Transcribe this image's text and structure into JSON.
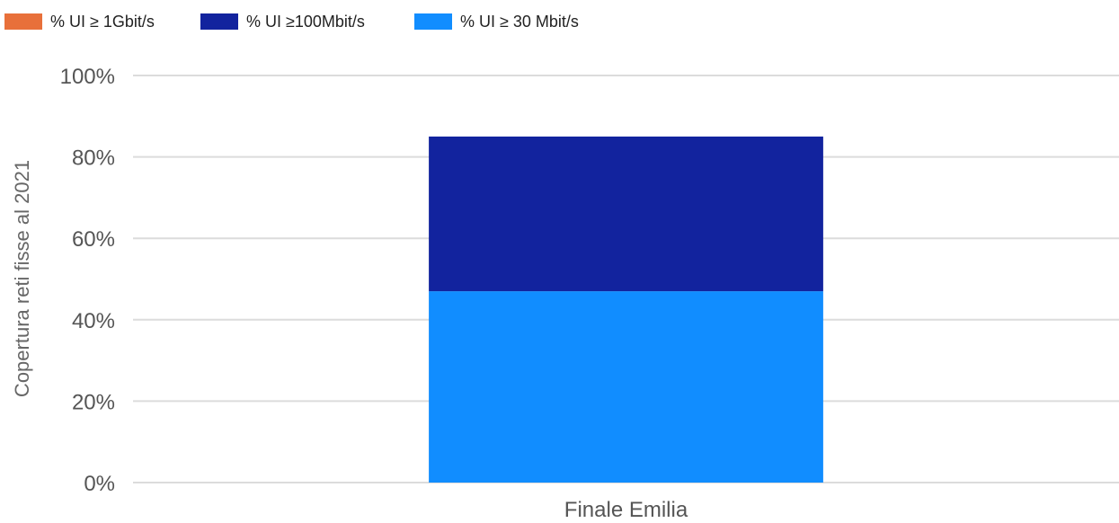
{
  "chart_data": {
    "type": "bar",
    "stacked": true,
    "categories": [
      "Finale Emilia"
    ],
    "series": [
      {
        "name": "% UI ≥ 1Gbit/s",
        "color": "#E8703A",
        "values": [
          0
        ]
      },
      {
        "name": "% UI ≥100Mbit/s",
        "color": "#12239E",
        "values": [
          38
        ]
      },
      {
        "name": "% UI ≥ 30 Mbit/s",
        "color": "#118DFF",
        "values": [
          47
        ]
      }
    ],
    "stack_order_bottom_to_top": [
      "% UI ≥ 30 Mbit/s",
      "% UI ≥100Mbit/s",
      "% UI ≥ 1Gbit/s"
    ],
    "ylabel": "Copertura reti fisse al 2021",
    "xlabel": "",
    "ylim": [
      0,
      100
    ],
    "y_ticks": [
      "0%",
      "20%",
      "40%",
      "60%",
      "80%",
      "100%"
    ],
    "y_tick_values": [
      0,
      20,
      40,
      60,
      80,
      100
    ],
    "grid": true,
    "legend_position": "top-left"
  }
}
